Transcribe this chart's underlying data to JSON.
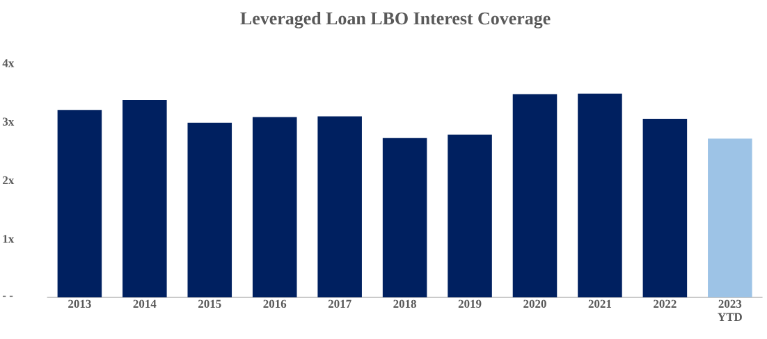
{
  "chart_data": {
    "type": "bar",
    "title": "Leveraged Loan LBO Interest Coverage",
    "categories": [
      "2013",
      "2014",
      "2015",
      "2016",
      "2017",
      "2018",
      "2019",
      "2020",
      "2021",
      "2022",
      "2023 YTD"
    ],
    "values": [
      3.2,
      3.37,
      2.98,
      3.08,
      3.09,
      2.72,
      2.78,
      3.47,
      3.48,
      3.05,
      2.71
    ],
    "colors": [
      "#002060",
      "#002060",
      "#002060",
      "#002060",
      "#002060",
      "#002060",
      "#002060",
      "#002060",
      "#002060",
      "#002060",
      "#9dc3e6"
    ],
    "ylim": [
      0,
      4
    ],
    "yticks": [
      {
        "value": 0,
        "label": "- -"
      },
      {
        "value": 1,
        "label": "1x"
      },
      {
        "value": 2,
        "label": "2x"
      },
      {
        "value": 3,
        "label": "3x"
      },
      {
        "value": 4,
        "label": "4x"
      }
    ],
    "grid": false
  }
}
